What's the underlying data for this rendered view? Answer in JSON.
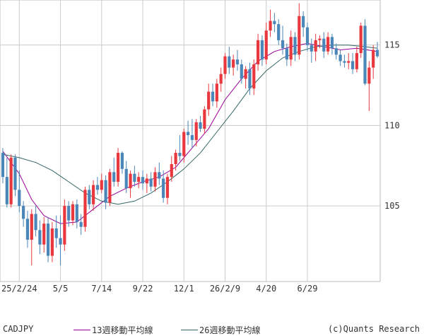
{
  "footer": {
    "pair": "CADJPY",
    "legend": [
      {
        "label": "13週移動平均線",
        "color": "#990099"
      },
      {
        "label": "26週移動平均線",
        "color": "#336666"
      }
    ],
    "credit": "(c)Quants Research"
  },
  "chart_data": {
    "type": "candlestick",
    "ylim": [
      100.3,
      117.8
    ],
    "y_ticks": [
      105,
      110,
      115
    ],
    "x_tick_labels": [
      "25/2/24",
      "5/5",
      "7/14",
      "9/22",
      "12/1",
      "26/2/9",
      "4/20",
      "6/29"
    ],
    "x_tick_index": [
      4,
      14,
      24,
      34,
      44,
      54,
      64,
      74
    ],
    "up_color": "#e8383d",
    "down_color": "#4a86b8",
    "candles": [
      [
        108.3,
        108.6,
        106.4,
        106.8
      ],
      [
        106.8,
        108.0,
        104.9,
        105.1
      ],
      [
        105.1,
        108.2,
        104.9,
        108.0
      ],
      [
        108.0,
        108.2,
        105.6,
        106.0
      ],
      [
        106.0,
        107.2,
        104.6,
        105.0
      ],
      [
        105.0,
        105.3,
        103.7,
        104.2
      ],
      [
        104.2,
        104.7,
        102.4,
        102.9
      ],
      [
        102.9,
        104.8,
        101.3,
        104.5
      ],
      [
        104.5,
        105.0,
        103.1,
        103.5
      ],
      [
        103.5,
        104.1,
        102.0,
        102.6
      ],
      [
        102.6,
        104.3,
        102.1,
        103.9
      ],
      [
        103.9,
        104.3,
        101.5,
        101.9
      ],
      [
        101.9,
        104.0,
        101.5,
        103.6
      ],
      [
        103.6,
        104.4,
        102.4,
        103.0
      ],
      [
        103.0,
        104.4,
        101.3,
        102.6
      ],
      [
        102.6,
        105.4,
        102.2,
        105.0
      ],
      [
        105.0,
        105.3,
        103.7,
        104.1
      ],
      [
        104.1,
        105.3,
        103.8,
        105.1
      ],
      [
        105.1,
        105.4,
        103.6,
        104.0
      ],
      [
        104.0,
        104.5,
        103.2,
        103.7
      ],
      [
        103.7,
        106.2,
        103.4,
        106.0
      ],
      [
        106.0,
        106.3,
        104.8,
        105.1
      ],
      [
        105.1,
        106.6,
        104.7,
        106.3
      ],
      [
        106.3,
        106.8,
        105.7,
        106.0
      ],
      [
        106.0,
        107.0,
        105.8,
        106.6
      ],
      [
        106.6,
        106.9,
        104.8,
        105.2
      ],
      [
        105.2,
        107.3,
        105.0,
        107.1
      ],
      [
        107.1,
        108.0,
        106.2,
        106.5
      ],
      [
        106.5,
        108.6,
        106.2,
        108.3
      ],
      [
        108.3,
        108.4,
        107.0,
        107.3
      ],
      [
        107.3,
        107.8,
        105.8,
        106.1
      ],
      [
        106.1,
        107.2,
        105.5,
        107.0
      ],
      [
        107.0,
        107.5,
        106.2,
        106.5
      ],
      [
        106.5,
        107.1,
        106.1,
        106.8
      ],
      [
        106.8,
        107.2,
        106.0,
        106.4
      ],
      [
        106.4,
        107.0,
        105.8,
        106.7
      ],
      [
        106.7,
        107.1,
        105.9,
        106.2
      ],
      [
        106.2,
        107.4,
        105.9,
        107.1
      ],
      [
        107.1,
        107.7,
        106.3,
        106.7
      ],
      [
        106.7,
        107.2,
        105.2,
        105.5
      ],
      [
        105.5,
        107.0,
        105.1,
        106.8
      ],
      [
        106.8,
        108.1,
        106.5,
        107.6
      ],
      [
        107.6,
        108.5,
        107.2,
        108.3
      ],
      [
        108.3,
        109.4,
        107.8,
        108.1
      ],
      [
        108.1,
        109.8,
        107.7,
        109.6
      ],
      [
        109.6,
        110.3,
        108.8,
        109.4
      ],
      [
        109.4,
        110.4,
        108.6,
        109.1
      ],
      [
        109.1,
        110.4,
        108.7,
        110.2
      ],
      [
        110.2,
        110.6,
        109.6,
        109.8
      ],
      [
        109.8,
        111.2,
        109.5,
        111.0
      ],
      [
        111.0,
        112.6,
        110.6,
        112.1
      ],
      [
        112.1,
        112.6,
        111.2,
        111.5
      ],
      [
        111.5,
        112.9,
        111.1,
        112.6
      ],
      [
        112.6,
        113.6,
        112.1,
        113.2
      ],
      [
        113.2,
        114.5,
        112.9,
        114.3
      ],
      [
        114.3,
        114.9,
        113.2,
        113.6
      ],
      [
        113.6,
        114.4,
        113.1,
        114.1
      ],
      [
        114.1,
        114.7,
        113.4,
        113.8
      ],
      [
        113.8,
        114.1,
        112.6,
        112.9
      ],
      [
        112.9,
        113.7,
        112.3,
        113.5
      ],
      [
        113.5,
        113.9,
        111.9,
        112.3
      ],
      [
        112.3,
        114.1,
        111.9,
        113.8
      ],
      [
        113.8,
        115.7,
        113.4,
        115.3
      ],
      [
        115.3,
        115.6,
        113.7,
        114.1
      ],
      [
        114.1,
        116.4,
        113.8,
        115.9
      ],
      [
        115.9,
        117.2,
        115.5,
        116.5
      ],
      [
        116.5,
        117.0,
        115.8,
        116.3
      ],
      [
        116.3,
        116.6,
        115.0,
        115.3
      ],
      [
        115.3,
        116.2,
        114.4,
        114.8
      ],
      [
        114.8,
        115.1,
        113.7,
        114.1
      ],
      [
        114.1,
        115.9,
        113.7,
        115.5
      ],
      [
        115.5,
        115.8,
        114.0,
        114.4
      ],
      [
        114.4,
        117.6,
        114.1,
        116.8
      ],
      [
        116.8,
        117.1,
        115.5,
        116.1
      ],
      [
        116.1,
        116.4,
        114.6,
        115.0
      ],
      [
        115.0,
        115.4,
        113.9,
        114.6
      ],
      [
        114.6,
        115.7,
        114.0,
        115.3
      ],
      [
        115.3,
        115.6,
        114.8,
        115.4
      ],
      [
        115.4,
        115.8,
        114.2,
        114.6
      ],
      [
        114.6,
        115.8,
        114.4,
        115.5
      ],
      [
        115.5,
        115.7,
        114.4,
        114.8
      ],
      [
        114.8,
        115.1,
        114.1,
        114.4
      ],
      [
        114.4,
        114.7,
        113.7,
        114.0
      ],
      [
        114.0,
        114.4,
        113.6,
        113.9
      ],
      [
        113.9,
        114.5,
        113.5,
        114.0
      ],
      [
        114.0,
        114.5,
        113.2,
        113.5
      ],
      [
        113.5,
        114.9,
        113.3,
        114.5
      ],
      [
        114.5,
        116.4,
        114.2,
        116.2
      ],
      [
        116.2,
        116.6,
        112.5,
        112.6
      ],
      [
        112.6,
        114.0,
        110.9,
        113.6
      ],
      [
        113.6,
        115.0,
        112.9,
        114.7
      ],
      [
        114.7,
        115.2,
        114.2,
        114.3
      ]
    ],
    "series": [
      {
        "name": "13週移動平均線",
        "color": "#990099",
        "points": [
          [
            0,
            108.4
          ],
          [
            4,
            107.0
          ],
          [
            7,
            105.4
          ],
          [
            10,
            104.4
          ],
          [
            14,
            103.9
          ],
          [
            18,
            104.0
          ],
          [
            22,
            104.8
          ],
          [
            26,
            105.6
          ],
          [
            30,
            106.1
          ],
          [
            34,
            106.5
          ],
          [
            38,
            106.8
          ],
          [
            42,
            107.4
          ],
          [
            46,
            108.6
          ],
          [
            50,
            109.8
          ],
          [
            54,
            111.6
          ],
          [
            58,
            112.9
          ],
          [
            62,
            114.0
          ],
          [
            66,
            114.6
          ],
          [
            70,
            114.9
          ],
          [
            74,
            115.1
          ],
          [
            78,
            114.9
          ],
          [
            82,
            114.7
          ],
          [
            86,
            114.8
          ],
          [
            91,
            114.6
          ]
        ]
      },
      {
        "name": "26週移動平均線",
        "color": "#336666",
        "points": [
          [
            0,
            108.2
          ],
          [
            4,
            108.0
          ],
          [
            8,
            107.7
          ],
          [
            12,
            107.2
          ],
          [
            16,
            106.5
          ],
          [
            20,
            105.8
          ],
          [
            24,
            105.3
          ],
          [
            28,
            105.1
          ],
          [
            32,
            105.3
          ],
          [
            36,
            105.8
          ],
          [
            40,
            106.5
          ],
          [
            44,
            107.3
          ],
          [
            48,
            108.3
          ],
          [
            52,
            109.6
          ],
          [
            56,
            110.9
          ],
          [
            60,
            112.3
          ],
          [
            64,
            113.4
          ],
          [
            68,
            114.2
          ],
          [
            72,
            114.6
          ],
          [
            76,
            114.9
          ],
          [
            80,
            115.0
          ],
          [
            84,
            115.0
          ],
          [
            88,
            114.9
          ],
          [
            91,
            114.8
          ]
        ]
      }
    ]
  }
}
